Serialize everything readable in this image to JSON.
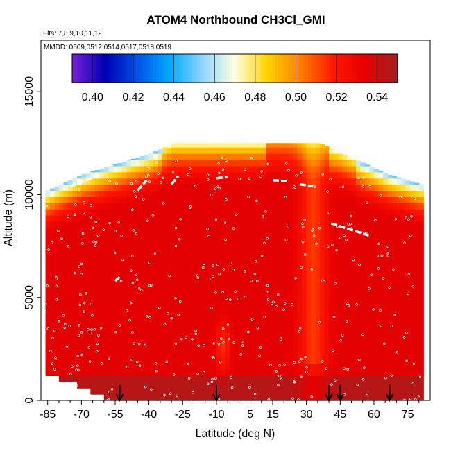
{
  "chart_data": {
    "type": "heatmap",
    "title": "ATOM4 Northbound CH3Cl_GMI",
    "subtitle_flights": "Flts: 7,8,9,10,11,12",
    "subtitle_dates": "MMDD: 0509,0512,0514,0517,0518,0519",
    "xlabel": "Latitude (deg N)",
    "ylabel": "Altitude (m)",
    "xlim": [
      -88,
      85
    ],
    "ylim": [
      0,
      17500
    ],
    "x_ticks": [
      -85,
      -70,
      -55,
      -40,
      -25,
      -10,
      5,
      15,
      30,
      45,
      60,
      75
    ],
    "x_tick_labels": [
      "-85",
      "-70",
      "-55",
      "-40",
      "-25",
      "-10",
      "5",
      "15",
      "30",
      "45",
      "60",
      "75"
    ],
    "y_ticks": [
      0,
      5000,
      10000,
      15000
    ],
    "y_tick_labels": [
      "0",
      "5000",
      "10000",
      "15000"
    ],
    "colorbar": {
      "min": 0.39,
      "max": 0.55,
      "ticks": [
        0.4,
        0.42,
        0.44,
        0.46,
        0.48,
        0.5,
        0.52,
        0.54
      ],
      "tick_labels": [
        "0.40",
        "0.42",
        "0.44",
        "0.46",
        "0.48",
        "0.50",
        "0.52",
        "0.54"
      ],
      "colors": [
        "#7a1fd6",
        "#0000b4",
        "#0050e6",
        "#00aaff",
        "#8fd4ff",
        "#ffffe0",
        "#ffd200",
        "#ff8000",
        "#ff1a00",
        "#e60000",
        "#a02020"
      ]
    },
    "profile_arrows_lat": [
      -53,
      -10,
      40,
      45,
      67
    ],
    "data_lat_range": [
      -86,
      82
    ],
    "data_alt_top_by_lat": [
      [
        -86,
        10200
      ],
      [
        -70,
        11000
      ],
      [
        -55,
        11500
      ],
      [
        -40,
        12000
      ],
      [
        -30,
        12500
      ],
      [
        -10,
        12500
      ],
      [
        5,
        12500
      ],
      [
        15,
        12500
      ],
      [
        25,
        12500
      ],
      [
        35,
        12500
      ],
      [
        45,
        12000
      ],
      [
        55,
        11500
      ],
      [
        65,
        11000
      ],
      [
        80,
        10500
      ]
    ],
    "surface_gap_lat_max": -60,
    "levels_alt": [
      9600,
      10200,
      10800,
      11400,
      12000
    ],
    "notes": "Curtain of CH3Cl model mixing ratio; low-altitude values ~0.53-0.55 (dark red), upper troposphere 0.45-0.50 (blue-yellow) near 10-12 km; orange plume near 30N."
  }
}
